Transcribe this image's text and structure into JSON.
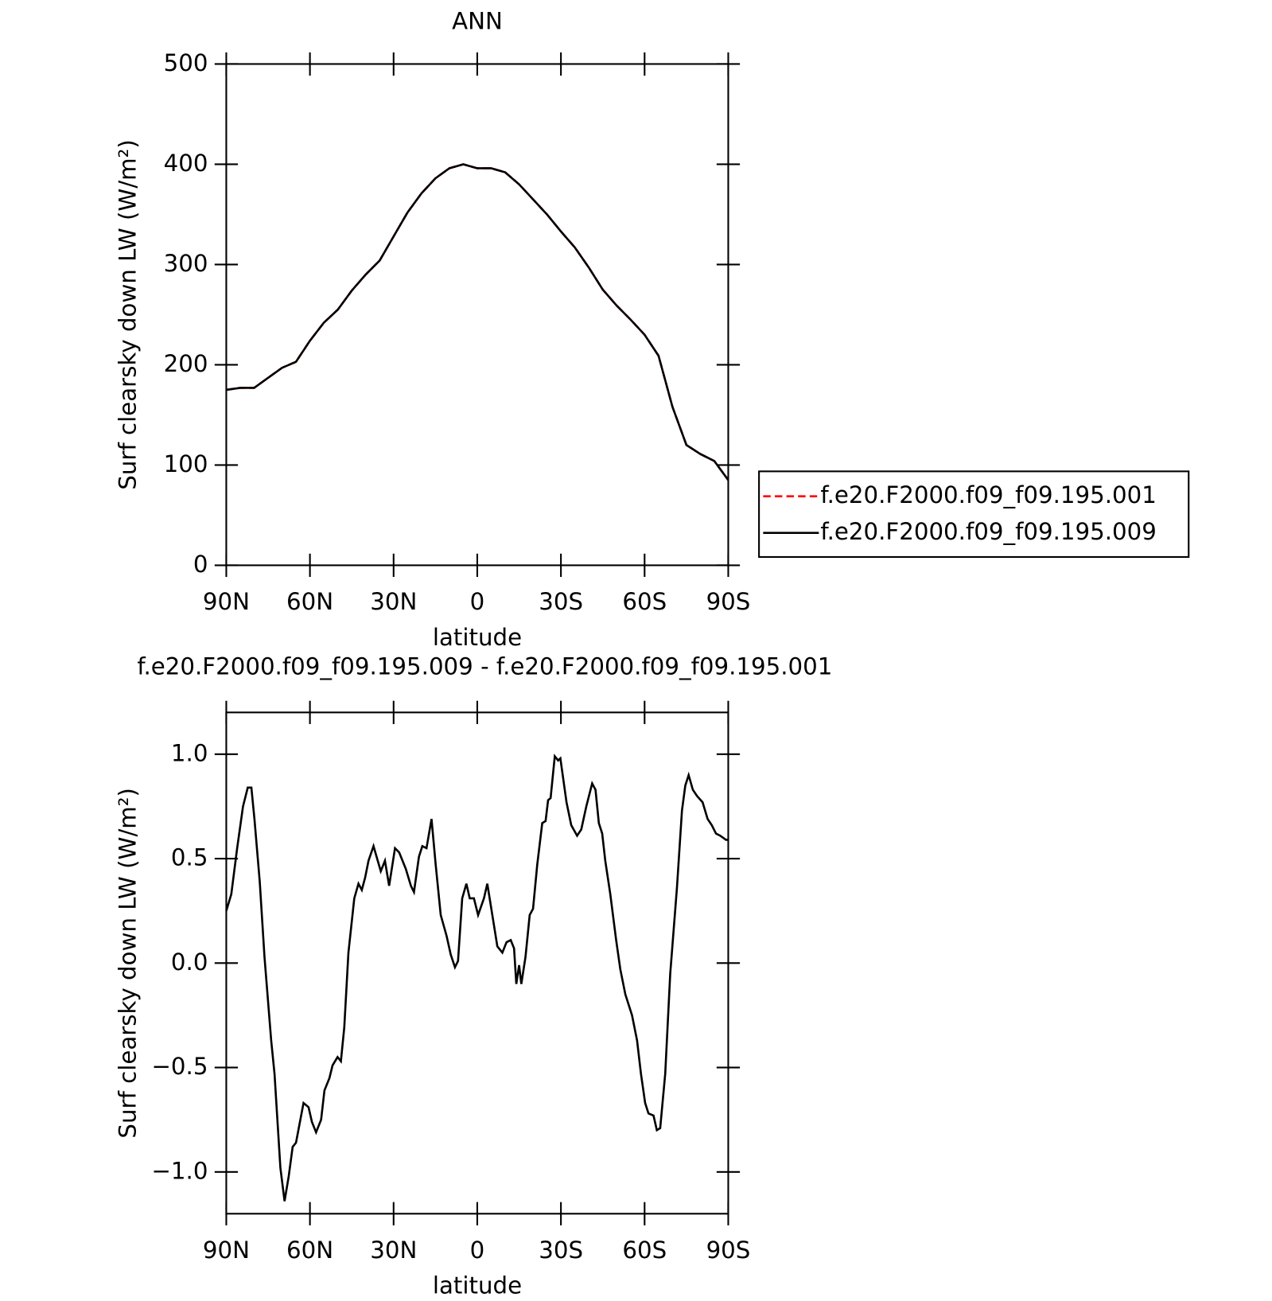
{
  "chart_data": [
    {
      "type": "line",
      "title": "ANN",
      "x": [
        90,
        85,
        80,
        75,
        70,
        65,
        60,
        55,
        50,
        45,
        40,
        35,
        30,
        25,
        20,
        15,
        10,
        5,
        0,
        -5,
        -10,
        -15,
        -20,
        -25,
        -30,
        -35,
        -40,
        -45,
        -50,
        -55,
        -60,
        -65,
        -70,
        -75,
        -80,
        -85,
        -90
      ],
      "series": [
        {
          "name": "f.e20.F2000.f09_f09.195.001",
          "color": "#ff0000",
          "dash": true,
          "values": [
            175,
            177,
            177,
            187,
            197,
            203,
            224,
            242,
            255,
            274,
            290,
            304,
            328,
            352,
            371,
            386,
            396,
            400,
            396,
            396,
            392,
            380,
            365,
            350,
            333,
            317,
            297,
            275,
            259,
            245,
            230,
            209,
            158,
            120,
            111,
            104,
            85
          ]
        },
        {
          "name": "f.e20.F2000.f09_f09.195.009",
          "color": "#000000",
          "dash": false,
          "values": [
            175,
            177,
            177,
            187,
            197,
            203,
            224,
            242,
            255,
            274,
            290,
            304,
            328,
            352,
            371,
            386,
            396,
            400,
            396,
            396,
            392,
            380,
            365,
            350,
            333,
            317,
            297,
            275,
            259,
            245,
            230,
            209,
            158,
            120,
            111,
            104,
            85
          ]
        }
      ],
      "xlim": [
        90,
        -90
      ],
      "xticks": [
        {
          "value": 90,
          "label": "90N"
        },
        {
          "value": 60,
          "label": "60N"
        },
        {
          "value": 30,
          "label": "30N"
        },
        0,
        {
          "value": -30,
          "label": "30S"
        },
        {
          "value": -60,
          "label": "60S"
        },
        {
          "value": -90,
          "label": "90S"
        }
      ],
      "ylim": [
        0,
        500
      ],
      "yticks": [
        0,
        100,
        200,
        300,
        400,
        500
      ],
      "xlabel": "latitude",
      "ylabel": "Surf clearsky down LW (W/m²)",
      "legend": "right"
    },
    {
      "type": "line",
      "title": "f.e20.F2000.f09_f09.195.009 - f.e20.F2000.f09_f09.195.001",
      "x": [
        90,
        88.2,
        86.1,
        84,
        82.3,
        81,
        79.9,
        78,
        76.3,
        73.9,
        72.7,
        70.6,
        69.1,
        67.6,
        66.2,
        65,
        62.3,
        60.5,
        59.3,
        57.8,
        56,
        54.8,
        53,
        51.9,
        50.1,
        48.9,
        47.7,
        46.2,
        44.1,
        42.6,
        41.4,
        40.2,
        39,
        37.2,
        34.6,
        33.1,
        31.6,
        29.5,
        28,
        25.6,
        23.8,
        22.7,
        20.9,
        19.7,
        18.2,
        16.4,
        14.9,
        13.1,
        11,
        9.5,
        8,
        6.9,
        5.4,
        3.9,
        2.7,
        1.2,
        -0.3,
        -2.4,
        -3.6,
        -5.4,
        -7.2,
        -9,
        -10.5,
        -12,
        -13.2,
        -14,
        -15,
        -15.8,
        -17.3,
        -18.8,
        -20,
        -21.5,
        -23.3,
        -24.5,
        -25.4,
        -26.3,
        -27.8,
        -29,
        -29.8,
        -32,
        -33.7,
        -35.8,
        -37.3,
        -39.1,
        -41.2,
        -42.4,
        -43.6,
        -44.8,
        -45.9,
        -47.7,
        -49.8,
        -51.3,
        -53.1,
        -55.5,
        -57.3,
        -58.7,
        -60.2,
        -61.4,
        -63.2,
        -64.4,
        -65.6,
        -67.4,
        -69.2,
        -71.6,
        -73.4,
        -74.6,
        -75.8,
        -77.3,
        -78.8,
        -80.8,
        -82.6,
        -84.1,
        -85.6,
        -87.1,
        -89.2,
        -90
      ],
      "series": [
        {
          "color": "#000000",
          "dash": false,
          "values": [
            0.25,
            0.33,
            0.55,
            0.75,
            0.84,
            0.84,
            0.69,
            0.39,
            0.03,
            -0.37,
            -0.53,
            -0.98,
            -1.14,
            -1.02,
            -0.88,
            -0.86,
            -0.67,
            -0.69,
            -0.76,
            -0.81,
            -0.75,
            -0.61,
            -0.55,
            -0.49,
            -0.45,
            -0.47,
            -0.31,
            0.05,
            0.31,
            0.38,
            0.35,
            0.41,
            0.49,
            0.56,
            0.44,
            0.49,
            0.37,
            0.55,
            0.53,
            0.45,
            0.37,
            0.34,
            0.51,
            0.56,
            0.55,
            0.69,
            0.47,
            0.23,
            0.13,
            0.04,
            -0.02,
            0.01,
            0.31,
            0.38,
            0.31,
            0.31,
            0.23,
            0.31,
            0.38,
            0.23,
            0.08,
            0.05,
            0.1,
            0.11,
            0.07,
            -0.1,
            -0.01,
            -0.1,
            0.03,
            0.23,
            0.26,
            0.47,
            0.67,
            0.68,
            0.78,
            0.79,
            0.99,
            0.97,
            0.98,
            0.77,
            0.66,
            0.61,
            0.64,
            0.75,
            0.86,
            0.83,
            0.67,
            0.62,
            0.49,
            0.33,
            0.11,
            -0.03,
            -0.15,
            -0.25,
            -0.37,
            -0.53,
            -0.67,
            -0.72,
            -0.73,
            -0.8,
            -0.79,
            -0.53,
            -0.05,
            0.36,
            0.73,
            0.85,
            0.9,
            0.83,
            0.8,
            0.77,
            0.69,
            0.66,
            0.62,
            0.61,
            0.59,
            0.59
          ]
        }
      ],
      "xlim": [
        90,
        -90
      ],
      "xticks": [
        {
          "value": 90,
          "label": "90N"
        },
        {
          "value": 60,
          "label": "60N"
        },
        {
          "value": 30,
          "label": "30N"
        },
        0,
        {
          "value": -30,
          "label": "30S"
        },
        {
          "value": -60,
          "label": "60S"
        },
        {
          "value": -90,
          "label": "90S"
        }
      ],
      "ylim": [
        -1.2,
        1.2
      ],
      "yticks": [
        {
          "value": -1,
          "label": "−1.0"
        },
        {
          "value": -0.5,
          "label": "−0.5"
        },
        {
          "value": 0,
          "label": "0.0"
        },
        {
          "value": 0.5,
          "label": "0.5"
        },
        {
          "value": 1,
          "label": "1.0"
        }
      ],
      "xlabel": "latitude",
      "ylabel": "Surf clearsky down LW (W/m²)"
    }
  ]
}
